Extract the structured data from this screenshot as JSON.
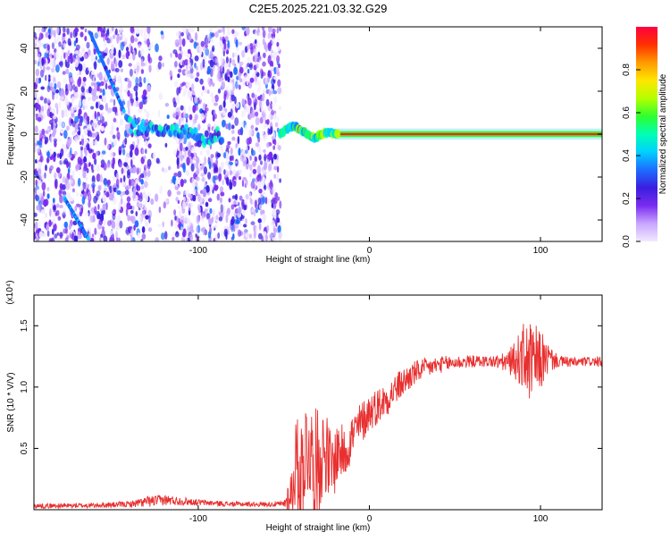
{
  "figure": {
    "title": "C2E5.2025.221.03.32.G29"
  },
  "chart_data": [
    {
      "type": "heatmap",
      "title": "C2E5.2025.221.03.32.G29",
      "xlabel": "Height of straight line (km)",
      "ylabel": "Frequency (Hz)",
      "xlim": [
        -196,
        136
      ],
      "ylim": [
        -50,
        50
      ],
      "xticks": [
        -100,
        0,
        100
      ],
      "xticklabels": [
        "-100",
        "0",
        "100"
      ],
      "yticks": [
        -40,
        -20,
        0,
        20,
        40
      ],
      "yticklabels": [
        "-40",
        "-20",
        "0",
        "20",
        "40"
      ],
      "grid": false,
      "colorbar": {
        "label": "Normalized spectral amplitude",
        "range": [
          0.0,
          1.0
        ],
        "ticks": [
          0.0,
          0.2,
          0.4,
          0.6,
          0.8
        ],
        "ticklabels": [
          "0.0",
          "0.2",
          "0.4",
          "0.6",
          "0.8"
        ],
        "colors": [
          "#f2eaff",
          "#c9a6ff",
          "#7a2cf0",
          "#3a1ee0",
          "#1d6dff",
          "#00d0ff",
          "#00ffb4",
          "#2eff2e",
          "#b4ff00",
          "#ffe600",
          "#ff9a00",
          "#ff3000",
          "#ff0040"
        ]
      },
      "features": {
        "noise_region": [
          -196,
          -52
        ],
        "carrier_trace": {
          "x": [
            -52,
            -48,
            -44,
            -40,
            -36,
            -32,
            -28,
            -24,
            -20,
            -10,
            0,
            20,
            60,
            100,
            136
          ],
          "y": [
            0,
            2.5,
            4,
            2,
            0,
            -2,
            0,
            1,
            0,
            0,
            0,
            0,
            0,
            0,
            0
          ]
        },
        "low_frequency_blob": {
          "x": [
            -142,
            -138,
            -132,
            -126,
            -120,
            -114,
            -108,
            -102,
            -96,
            -90,
            -86
          ],
          "y": [
            6,
            3,
            4,
            1,
            3,
            0,
            2,
            -1,
            -3,
            0,
            -2
          ]
        },
        "streaks": [
          {
            "x": [
              -163,
              -143
            ],
            "y": [
              47,
              10
            ]
          },
          {
            "x": [
              -178,
              -164
            ],
            "y": [
              -30,
              -49
            ]
          }
        ]
      }
    },
    {
      "type": "line",
      "xlabel": "Height of straight line (km)",
      "ylabel": "SNR (10 * V/V)",
      "yscale_label": "(x10⁴)",
      "xlim": [
        -196,
        136
      ],
      "ylim": [
        0,
        17500
      ],
      "xticks": [
        -100,
        0,
        100
      ],
      "xticklabels": [
        "-100",
        "0",
        "100"
      ],
      "yticks": [
        5000,
        10000,
        15000
      ],
      "yticklabels": [
        "0.5",
        "1.0",
        "1.5"
      ],
      "grid": false,
      "series": [
        {
          "color": "#e83030",
          "x": [
            -196,
            -160,
            -140,
            -130,
            -120,
            -100,
            -80,
            -60,
            -50,
            -45,
            -43,
            -40,
            -38,
            -35,
            -33,
            -30,
            -26,
            -22,
            -18,
            -15,
            -10,
            -5,
            0,
            5,
            10,
            15,
            20,
            25,
            30,
            40,
            50,
            60,
            70,
            80,
            85,
            90,
            95,
            100,
            105,
            110,
            120,
            130,
            136
          ],
          "y": [
            300,
            350,
            450,
            650,
            800,
            600,
            450,
            450,
            450,
            1500,
            4000,
            3000,
            4500,
            5500,
            3500,
            4000,
            5000,
            3200,
            5000,
            4500,
            6000,
            7000,
            8000,
            8500,
            9000,
            9800,
            10400,
            11000,
            11400,
            11800,
            12000,
            12100,
            12100,
            12000,
            12200,
            12400,
            11800,
            12200,
            12300,
            12100,
            12000,
            12100,
            12000
          ],
          "noise_amplitude": [
            200,
            200,
            250,
            450,
            450,
            250,
            200,
            200,
            250,
            2500,
            3500,
            4500,
            4500,
            4500,
            4500,
            4500,
            3500,
            3000,
            2500,
            2200,
            2000,
            1800,
            1600,
            1500,
            1400,
            1300,
            1200,
            1100,
            900,
            700,
            600,
            500,
            450,
            800,
            1500,
            2800,
            3500,
            2500,
            1200,
            500,
            400,
            400,
            400
          ]
        }
      ]
    }
  ]
}
